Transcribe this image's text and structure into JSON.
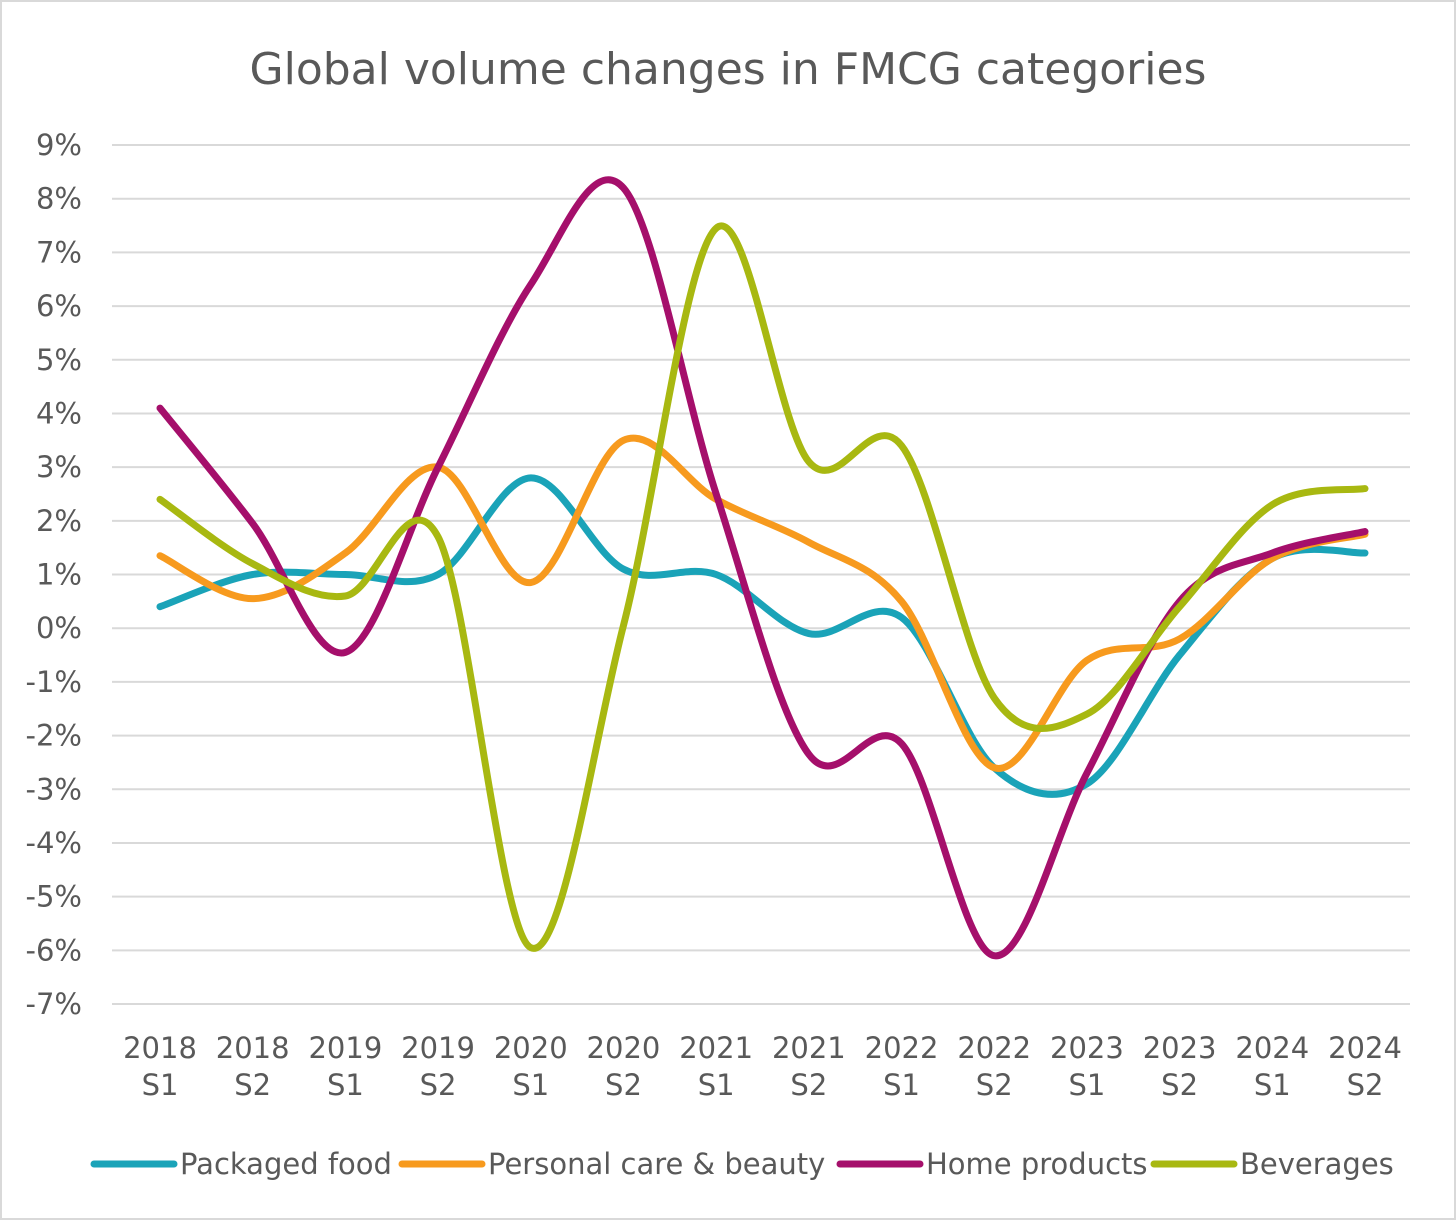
{
  "chart_data": {
    "type": "line",
    "title": "Global volume changes in FMCG categories",
    "xlabel": "",
    "ylabel": "",
    "categories": [
      [
        "2018",
        "S1"
      ],
      [
        "2018",
        "S2"
      ],
      [
        "2019",
        "S1"
      ],
      [
        "2019",
        "S2"
      ],
      [
        "2020",
        "S1"
      ],
      [
        "2020",
        "S2"
      ],
      [
        "2021",
        "S1"
      ],
      [
        "2021",
        "S2"
      ],
      [
        "2022",
        "S1"
      ],
      [
        "2022",
        "S2"
      ],
      [
        "2023",
        "S1"
      ],
      [
        "2023",
        "S2"
      ],
      [
        "2024",
        "S1"
      ],
      [
        "2024",
        "S2"
      ]
    ],
    "ylim": [
      -7,
      9
    ],
    "ytick_step": 1,
    "y_tick_suffix": "%",
    "grid": true,
    "smooth": true,
    "legend_position": "bottom",
    "series": [
      {
        "name": "Packaged food",
        "color": "#1aa3b8",
        "values": [
          0.4,
          1.0,
          1.0,
          1.0,
          2.8,
          1.1,
          1.0,
          -0.1,
          0.2,
          -2.6,
          -2.9,
          -0.5,
          1.3,
          1.4
        ]
      },
      {
        "name": "Personal care & beauty",
        "color": "#f79a1e",
        "values": [
          1.35,
          0.55,
          1.4,
          3.0,
          0.85,
          3.5,
          2.4,
          1.6,
          0.5,
          -2.6,
          -0.6,
          -0.2,
          1.3,
          1.75
        ]
      },
      {
        "name": "Home products",
        "color": "#a50f6b",
        "values": [
          4.1,
          1.95,
          -0.45,
          3.0,
          6.4,
          8.2,
          2.5,
          -2.35,
          -2.15,
          -6.1,
          -2.7,
          0.5,
          1.4,
          1.8
        ]
      },
      {
        "name": "Beverages",
        "color": "#a8b811",
        "values": [
          2.4,
          1.2,
          0.6,
          1.7,
          -5.95,
          0.05,
          7.45,
          3.1,
          3.4,
          -1.3,
          -1.6,
          0.4,
          2.3,
          2.6
        ]
      }
    ]
  }
}
